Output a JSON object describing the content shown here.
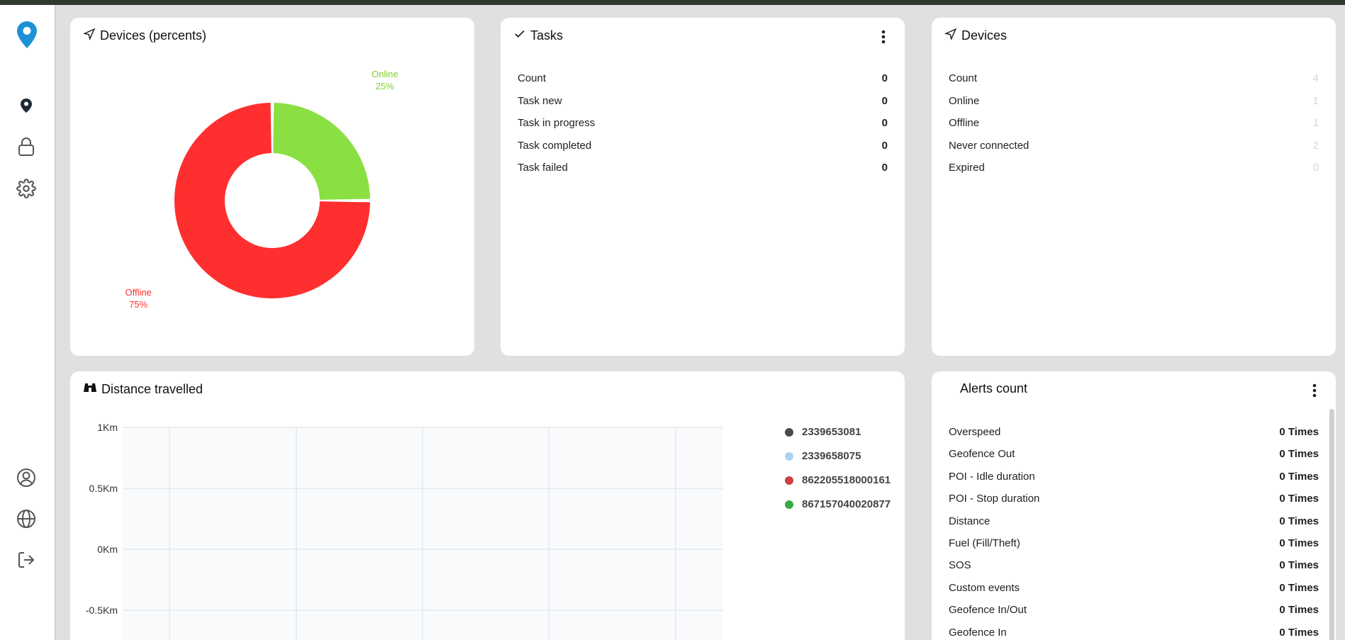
{
  "sidebar": {
    "logo_icon": "map-pin-logo",
    "items": [
      {
        "icon": "location-pin-icon"
      },
      {
        "icon": "lock-icon"
      },
      {
        "icon": "gear-icon"
      },
      {
        "icon": "user-circle-icon"
      },
      {
        "icon": "globe-icon"
      },
      {
        "icon": "logout-icon"
      }
    ]
  },
  "devices_percent": {
    "title": "Devices (percents)",
    "chart_data": {
      "type": "pie",
      "title": "Devices (percents)",
      "slices": [
        {
          "label": "Online",
          "value": 25,
          "display": "25%",
          "color": "#8ae042"
        },
        {
          "label": "Offline",
          "value": 75,
          "display": "75%",
          "color": "#ff2f2f"
        }
      ]
    }
  },
  "tasks": {
    "title": "Tasks",
    "rows": [
      {
        "label": "Count",
        "value": "0"
      },
      {
        "label": "Task new",
        "value": "0"
      },
      {
        "label": "Task in progress",
        "value": "0"
      },
      {
        "label": "Task completed",
        "value": "0"
      },
      {
        "label": "Task failed",
        "value": "0"
      }
    ]
  },
  "devices": {
    "title": "Devices",
    "rows": [
      {
        "label": "Count",
        "value": "4"
      },
      {
        "label": "Online",
        "value": "1"
      },
      {
        "label": "Offline",
        "value": "1"
      },
      {
        "label": "Never connected",
        "value": "2"
      },
      {
        "label": "Expired",
        "value": "0"
      }
    ]
  },
  "distance": {
    "title": "Distance travelled",
    "chart_data": {
      "type": "line",
      "yticks": [
        "1Km",
        "0.5Km",
        "0Km",
        "-0.5Km"
      ],
      "ylim": [
        -0.5,
        1
      ],
      "series": [
        {
          "name": "2339653081",
          "color": "#4a4a4a",
          "values": []
        },
        {
          "name": "2339658075",
          "color": "#a9d3f5",
          "values": []
        },
        {
          "name": "862205518000161",
          "color": "#c94343",
          "values": []
        },
        {
          "name": "867157040020877",
          "color": "#3aa845",
          "values": []
        }
      ]
    }
  },
  "alerts": {
    "title": "Alerts count",
    "rows": [
      {
        "label": "Overspeed",
        "value": "0 Times"
      },
      {
        "label": "Geofence Out",
        "value": "0 Times"
      },
      {
        "label": "POI - Idle duration",
        "value": "0 Times"
      },
      {
        "label": "POI - Stop duration",
        "value": "0 Times"
      },
      {
        "label": "Distance",
        "value": "0 Times"
      },
      {
        "label": "Fuel (Fill/Theft)",
        "value": "0 Times"
      },
      {
        "label": "SOS",
        "value": "0 Times"
      },
      {
        "label": "Custom events",
        "value": "0 Times"
      },
      {
        "label": "Geofence In/Out",
        "value": "0 Times"
      },
      {
        "label": "Geofence In",
        "value": "0 Times"
      }
    ]
  }
}
